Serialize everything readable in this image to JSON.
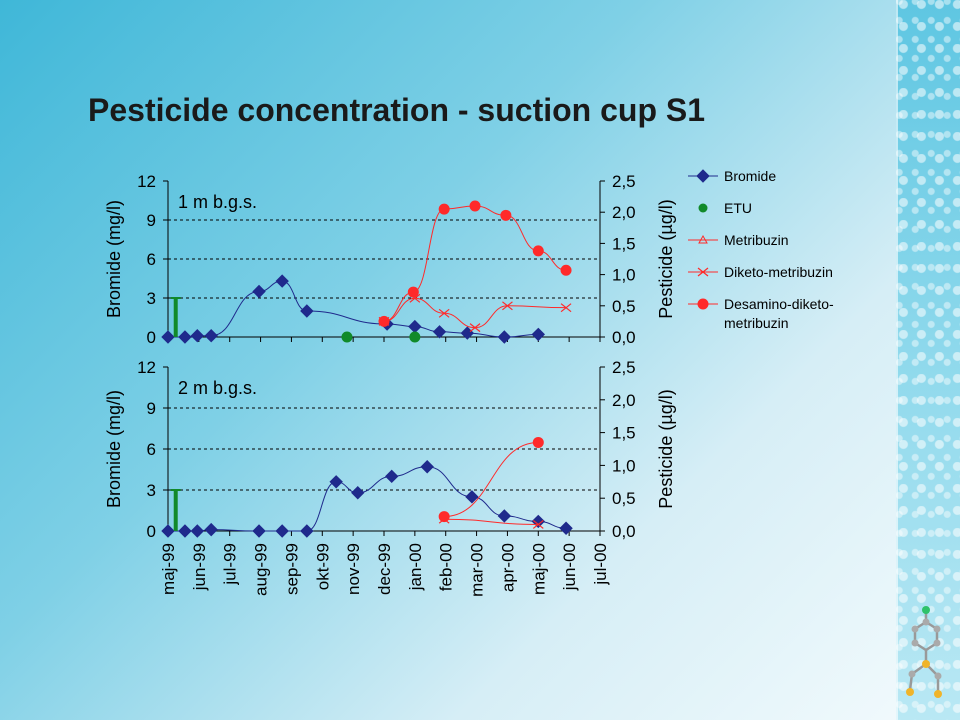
{
  "slide": {
    "title": "Pesticide concentration - suction cup S1"
  },
  "colors": {
    "bromide": "#1f2a8c",
    "etu": "#118a2a",
    "metribuzin": "#ff2a2a",
    "diketo": "#ff2a2a",
    "desamino": "#ff2a2a"
  },
  "x_tick_labels": [
    "maj-99",
    "jun-99",
    "jul-99",
    "aug-99",
    "sep-99",
    "okt-99",
    "nov-99",
    "dec-99",
    "jan-00",
    "feb-00",
    "mar-00",
    "apr-00",
    "maj-00",
    "jun-00",
    "jul-00"
  ],
  "chart_data": [
    {
      "type": "line",
      "annotation": "1 m b.g.s.",
      "ylabel": "Bromide (mg/l)",
      "y2label": "Pesticide (µg/l)",
      "ylim": [
        0,
        12
      ],
      "y_ticks": [
        "0",
        "3",
        "6",
        "9",
        "12"
      ],
      "y2lim": [
        0,
        2.5
      ],
      "y2_ticks": [
        "0,0",
        "0,5",
        "1,0",
        "1,5",
        "2,0",
        "2,5"
      ],
      "grid": "horizontal dashed",
      "legend_position": "right",
      "series": [
        {
          "name": "Bromide",
          "axis": "left",
          "marker": "diamond",
          "x": [
            0.0,
            0.55,
            0.95,
            1.4,
            2.95,
            3.7,
            4.5,
            7.1,
            8.0,
            8.8,
            9.7,
            10.9,
            12.0
          ],
          "y": [
            0.0,
            0.0,
            0.1,
            0.1,
            3.5,
            4.3,
            2.0,
            1.0,
            0.8,
            0.4,
            0.3,
            0.0,
            0.2
          ]
        },
        {
          "name": "ETU",
          "axis": "right",
          "marker": "circle",
          "x": [
            5.8,
            8.0
          ],
          "y": [
            0.0,
            0.0
          ],
          "bar": {
            "x": 0.25,
            "y": 3.0
          }
        },
        {
          "name": "Metribuzin",
          "axis": "right",
          "marker": "triangle",
          "x": [],
          "y": []
        },
        {
          "name": "Diketo-metribuzin",
          "axis": "right",
          "marker": "x",
          "x": [
            7.0,
            8.0,
            8.95,
            9.95,
            11.0,
            12.9
          ],
          "y": [
            0.25,
            0.62,
            0.38,
            0.15,
            0.5,
            0.47
          ]
        },
        {
          "name": "Desamino-diketo-metribuzin",
          "axis": "right",
          "marker": "circle",
          "x": [
            7.0,
            7.95,
            8.95,
            9.95,
            10.95,
            12.0,
            12.9
          ],
          "y": [
            0.25,
            0.72,
            2.05,
            2.1,
            1.95,
            1.38,
            1.07
          ]
        }
      ]
    },
    {
      "type": "line",
      "annotation": "2 m b.g.s.",
      "ylabel": "Bromide (mg/l)",
      "y2label": "Pesticide (µg/l)",
      "ylim": [
        0,
        12
      ],
      "y_ticks": [
        "0",
        "3",
        "6",
        "9",
        "12"
      ],
      "y2lim": [
        0,
        2.5
      ],
      "y2_ticks": [
        "0,0",
        "0,5",
        "1,0",
        "1,5",
        "2,0",
        "2,5"
      ],
      "grid": "horizontal dashed",
      "series": [
        {
          "name": "Bromide",
          "axis": "left",
          "marker": "diamond",
          "x": [
            0.0,
            0.55,
            0.95,
            1.4,
            2.95,
            3.7,
            4.5,
            5.45,
            6.15,
            7.25,
            8.4,
            9.85,
            10.9,
            12.0,
            12.9
          ],
          "y": [
            0.0,
            0.0,
            0.0,
            0.1,
            0.0,
            0.0,
            0.0,
            3.6,
            2.8,
            4.0,
            4.7,
            2.5,
            1.1,
            0.7,
            0.2
          ]
        },
        {
          "name": "ETU",
          "axis": "right",
          "marker": "circle",
          "x": [],
          "y": [],
          "bar": {
            "x": 0.25,
            "y": 3.0
          }
        },
        {
          "name": "Diketo-metribuzin",
          "axis": "right",
          "marker": "x",
          "x": [
            8.95,
            12.0
          ],
          "y": [
            0.18,
            0.1
          ]
        },
        {
          "name": "Desamino-diketo-metribuzin",
          "axis": "right",
          "marker": "circle",
          "x": [
            8.95,
            12.0
          ],
          "y": [
            0.22,
            1.35
          ]
        }
      ]
    }
  ],
  "legend": [
    {
      "label": "Bromide",
      "marker": "diamond",
      "color": "#1f2a8c"
    },
    {
      "label": "ETU",
      "marker": "circle",
      "color": "#118a2a"
    },
    {
      "label": "Metribuzin",
      "marker": "triangle",
      "color": "#ff2a2a"
    },
    {
      "label": "Diketo-metribuzin",
      "marker": "x",
      "color": "#ff2a2a"
    },
    {
      "label": "Desamino-diketo-",
      "label2": "metribuzin",
      "marker": "circle",
      "color": "#ff2a2a"
    }
  ]
}
